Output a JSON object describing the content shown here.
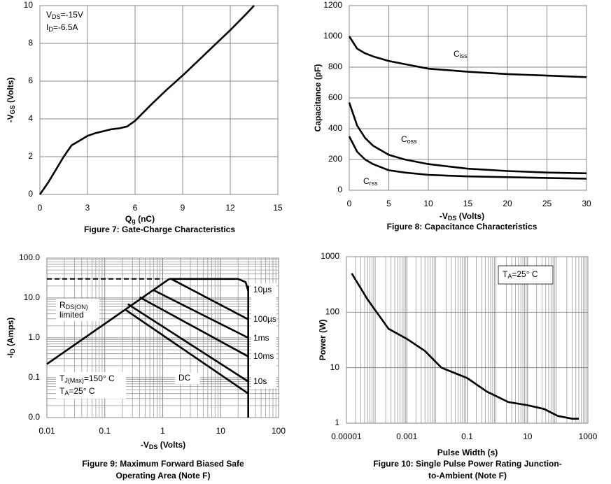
{
  "chart_data": [
    {
      "type": "line",
      "title": [
        "Figure 7: Gate-Charge Characteristics"
      ],
      "xlabel": [
        "Q",
        "g",
        " (nC)"
      ],
      "ylabel": [
        "-V",
        "GS",
        " (Volts)"
      ],
      "annotations": [
        [
          "V",
          "DS",
          "=-15V"
        ],
        [
          "I",
          "D",
          "=-6.5A"
        ]
      ],
      "xlim": [
        0,
        15
      ],
      "xticks": [
        0,
        3,
        6,
        9,
        12,
        15
      ],
      "ylim": [
        0,
        10
      ],
      "yticks": [
        0,
        2,
        4,
        6,
        8,
        10
      ],
      "grid": true,
      "x": [
        0,
        0.5,
        1,
        1.5,
        2,
        2.5,
        3,
        3.5,
        4,
        4.5,
        5,
        5.5,
        6,
        7,
        8,
        9,
        10,
        11,
        12,
        13,
        13.5
      ],
      "series": [
        {
          "color": "#000000",
          "values": [
            0,
            0.6,
            1.3,
            2.0,
            2.6,
            2.85,
            3.1,
            3.25,
            3.35,
            3.45,
            3.5,
            3.6,
            3.9,
            4.75,
            5.55,
            6.3,
            7.1,
            7.9,
            8.7,
            9.55,
            10
          ]
        }
      ]
    },
    {
      "type": "line",
      "title": [
        "Figure 8: Capacitance Characteristics"
      ],
      "xlabel": [
        "-V",
        "DS",
        " (Volts)"
      ],
      "ylabel": [
        "Capacitance (pF)"
      ],
      "xlim": [
        0,
        30
      ],
      "xticks": [
        0,
        5,
        10,
        15,
        20,
        25,
        30
      ],
      "ylim": [
        0,
        1200
      ],
      "yticks": [
        0,
        200,
        400,
        600,
        800,
        1000,
        1200
      ],
      "grid": true,
      "x": [
        0,
        1,
        2,
        3,
        5,
        7,
        10,
        15,
        20,
        25,
        30
      ],
      "series": [
        {
          "name": "Ciss",
          "color": "#000000",
          "values": [
            1000,
            920,
            890,
            870,
            840,
            820,
            790,
            770,
            755,
            745,
            735
          ]
        },
        {
          "name": "Coss",
          "color": "#000000",
          "values": [
            570,
            420,
            340,
            290,
            230,
            200,
            170,
            140,
            125,
            115,
            110
          ]
        },
        {
          "name": "Crss",
          "color": "#000000",
          "values": [
            350,
            250,
            200,
            170,
            130,
            115,
            100,
            90,
            85,
            80,
            75
          ]
        }
      ]
    },
    {
      "type": "line",
      "title": [
        "Figure 9: Maximum Forward Biased Safe",
        "Operating Area (Note F)"
      ],
      "xlabel": [
        "-V",
        "DS",
        " (Volts)"
      ],
      "ylabel": [
        "-I",
        "D",
        " (Amps)"
      ],
      "annotations": [
        [
          "R",
          "DS(ON)",
          ""
        ],
        [
          "limited"
        ],
        [
          "T",
          "J(Max)",
          "=150° C"
        ],
        [
          "T",
          "A",
          "=25° C"
        ]
      ],
      "xscale": "log",
      "yscale": "log",
      "grid": true,
      "minor_grid": true,
      "xlim": [
        0.01,
        100
      ],
      "xticks": [
        0.01,
        0.1,
        1,
        10,
        100
      ],
      "ylim": [
        0.01,
        100
      ],
      "yticks": [
        {
          "value": 0.01,
          "label": "0.0"
        },
        {
          "value": 0.1,
          "label": "0.1"
        },
        {
          "value": 1,
          "label": "1.0"
        },
        {
          "value": 10,
          "label": "10.0"
        },
        {
          "value": 100,
          "label": "100.0"
        }
      ],
      "series": [
        {
          "color": "#000000",
          "x": [
            0.01,
            1.3
          ],
          "values": [
            0.22,
            30
          ]
        },
        {
          "color": "#000000",
          "style": "dashed",
          "x": [
            0.01,
            1.0
          ],
          "values": [
            30,
            30
          ]
        },
        {
          "name": "10µs",
          "color": "#000000",
          "x": [
            1.3,
            20,
            27,
            30
          ],
          "values": [
            30,
            30,
            25,
            15
          ]
        },
        {
          "name": "100µs",
          "color": "#000000",
          "x": [
            1.4,
            30
          ],
          "values": [
            30,
            2.9
          ]
        },
        {
          "name": "1ms",
          "color": "#000000",
          "x": [
            0.7,
            30
          ],
          "values": [
            15.6,
            1
          ]
        },
        {
          "name": "10ms",
          "color": "#000000",
          "x": [
            0.4,
            30
          ],
          "values": [
            10.4,
            0.34
          ]
        },
        {
          "name": "10s",
          "color": "#000000",
          "x": [
            0.25,
            30
          ],
          "values": [
            7,
            0.08
          ]
        },
        {
          "name": "DC",
          "color": "#000000",
          "x": [
            0.23,
            30
          ],
          "values": [
            5,
            0.04
          ]
        },
        {
          "color": "#000000",
          "x": [
            30,
            30
          ],
          "values": [
            0.01,
            20
          ]
        }
      ]
    },
    {
      "type": "line",
      "title": [
        "Figure 10: Single Pulse Power Rating Junction-",
        "to-Ambient (Note F)"
      ],
      "xlabel": [
        "Pulse Width (s)"
      ],
      "ylabel": [
        "Power (W)"
      ],
      "annotations": [
        [
          "T",
          "A",
          "=25° C"
        ]
      ],
      "xscale": "log",
      "yscale": "log",
      "grid": true,
      "minor_grid": true,
      "xlim": [
        1e-05,
        1000
      ],
      "xticks": [
        1e-05,
        0.001,
        0.1,
        10,
        1000
      ],
      "ylim": [
        1,
        1000
      ],
      "yticks": [
        1,
        10,
        100,
        1000
      ],
      "x": [
        1.5e-05,
        5e-05,
        0.00025,
        0.001,
        0.004,
        0.014,
        0.1,
        0.45,
        2.3,
        10,
        35,
        100,
        300,
        500
      ],
      "series": [
        {
          "color": "#000000",
          "values": [
            500,
            170,
            50,
            33,
            20,
            10,
            6.5,
            3.7,
            2.4,
            2.1,
            1.8,
            1.35,
            1.2,
            1.2
          ]
        }
      ]
    }
  ]
}
